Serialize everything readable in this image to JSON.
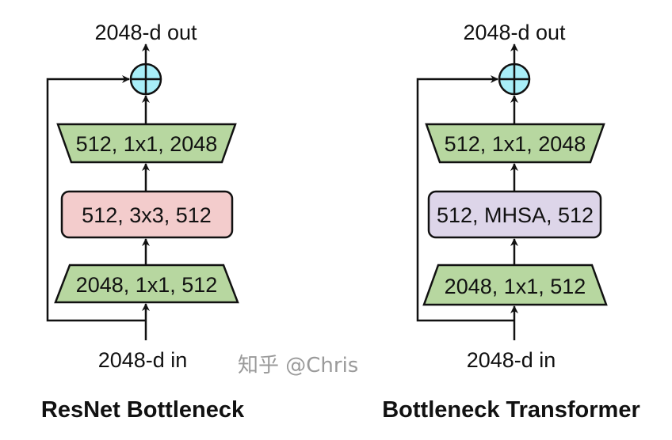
{
  "colors": {
    "green": "#b7d7a0",
    "red": "#f3cccc",
    "purple": "#ddd5e9",
    "plus": "#a8eef8",
    "stroke": "#111111"
  },
  "diagrams": [
    {
      "title": "ResNet Bottleneck",
      "output_label": "2048-d out",
      "input_label": "2048-d in",
      "top_block": "512, 1x1, 2048",
      "middle_block": "512, 3x3, 512",
      "bottom_block": "2048, 1x1, 512"
    },
    {
      "title": "Bottleneck Transformer",
      "output_label": "2048-d out",
      "input_label": "2048-d in",
      "top_block": "512, 1x1, 2048",
      "middle_block": "512, MHSA, 512",
      "bottom_block": "2048, 1x1, 512"
    }
  ],
  "watermark": "知乎 @Chris"
}
